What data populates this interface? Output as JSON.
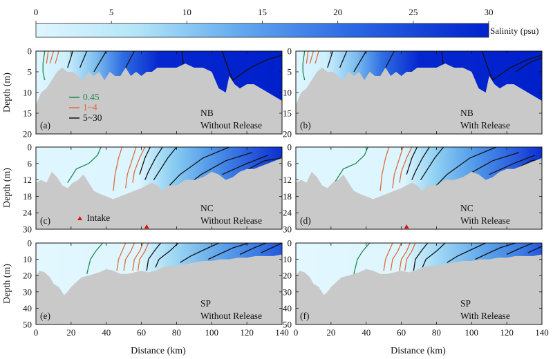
{
  "chart_data": {
    "type": "heatmap",
    "colorbar": {
      "label": "Salinity (psu)",
      "ticks": [
        0,
        5,
        10,
        15,
        20,
        25,
        30
      ],
      "range": [
        0,
        30
      ],
      "color_low": "#dff6ff",
      "color_high": "#0022cc"
    },
    "xlabel": "Distance (km)",
    "ylabel": "Depth (m)",
    "xlim": [
      0,
      140
    ],
    "xticks": [
      0,
      20,
      40,
      60,
      80,
      100,
      120,
      140
    ],
    "terrain_color": "#c9c9c9",
    "legend": {
      "entries": [
        {
          "label": "0.45",
          "color": "#1a8a50"
        },
        {
          "label": "1~4",
          "color": "#e06a3a"
        },
        {
          "label": "5~30",
          "color": "#111111"
        }
      ]
    },
    "intake": {
      "label": "Intake",
      "color": "#e01010",
      "x_km": 63
    },
    "rows": [
      {
        "name": "NB",
        "ylim": [
          20,
          0
        ],
        "yticks": [
          0,
          5,
          10,
          15,
          20
        ],
        "bottom": [
          [
            0,
            13
          ],
          [
            3,
            10
          ],
          [
            6,
            9
          ],
          [
            9,
            7
          ],
          [
            12,
            5
          ],
          [
            15,
            4
          ],
          [
            18,
            5
          ],
          [
            21,
            5
          ],
          [
            24,
            6
          ],
          [
            27,
            7
          ],
          [
            30,
            5
          ],
          [
            33,
            6
          ],
          [
            36,
            5
          ],
          [
            39,
            7
          ],
          [
            42,
            5
          ],
          [
            45,
            6
          ],
          [
            48,
            6
          ],
          [
            51,
            4
          ],
          [
            54,
            6
          ],
          [
            57,
            5
          ],
          [
            60,
            6
          ],
          [
            63,
            5
          ],
          [
            66,
            5
          ],
          [
            69,
            4
          ],
          [
            72,
            4
          ],
          [
            75,
            4
          ],
          [
            80,
            4
          ],
          [
            85,
            3
          ],
          [
            90,
            4
          ],
          [
            95,
            4
          ],
          [
            100,
            5
          ],
          [
            104,
            9
          ],
          [
            108,
            10
          ],
          [
            110,
            6
          ],
          [
            113,
            8
          ],
          [
            116,
            9
          ],
          [
            120,
            8
          ],
          [
            124,
            8
          ],
          [
            128,
            9
          ],
          [
            132,
            10
          ],
          [
            136,
            11
          ],
          [
            140,
            12
          ]
        ],
        "contours": {
          "green": [
            [
              [
                5,
                0
              ],
              [
                4,
                3
              ],
              [
                4,
                5
              ],
              [
                5,
                7
              ]
            ]
          ],
          "orange": [
            [
              [
                7,
                0
              ],
              [
                6,
                3
              ]
            ],
            [
              [
                10,
                0
              ],
              [
                8,
                3
              ]
            ],
            [
              [
                13,
                0
              ],
              [
                11,
                3
              ]
            ]
          ],
          "black": [
            [
              [
                21,
                0
              ],
              [
                18,
                4
              ]
            ],
            [
              [
                29,
                0
              ],
              [
                25,
                4
              ]
            ],
            [
              [
                40,
                0
              ],
              [
                33,
                5
              ]
            ],
            [
              [
                56,
                0
              ],
              [
                51,
                4
              ]
            ],
            [
              [
                83,
                0
              ],
              [
                84,
                4
              ]
            ],
            [
              [
                106,
                0
              ],
              [
                110,
                5
              ],
              [
                112,
                7
              ]
            ],
            [
              [
                140,
                1
              ],
              [
                132,
                2
              ],
              [
                122,
                4
              ],
              [
                112,
                7
              ]
            ]
          ]
        },
        "panels": [
          {
            "letter": "(a)",
            "site": "NB",
            "scenario": "Without Release",
            "shift": 0,
            "extra_black": []
          },
          {
            "letter": "(b)",
            "site": "NB",
            "scenario": "With Release",
            "shift": 0,
            "extra_black": [
              [
                [
                  140,
                  1.6
                ],
                [
                  133,
                  2.8
                ],
                [
                  125,
                  5
                ]
              ]
            ]
          }
        ]
      },
      {
        "name": "NC",
        "ylim": [
          30,
          0
        ],
        "yticks": [
          0,
          6,
          12,
          18,
          24,
          30
        ],
        "bottom": [
          [
            0,
            13
          ],
          [
            3,
            12
          ],
          [
            6,
            13
          ],
          [
            9,
            9
          ],
          [
            12,
            11
          ],
          [
            15,
            14
          ],
          [
            18,
            15
          ],
          [
            21,
            13
          ],
          [
            24,
            12
          ],
          [
            27,
            10
          ],
          [
            30,
            13
          ],
          [
            33,
            16
          ],
          [
            36,
            17
          ],
          [
            40,
            18
          ],
          [
            44,
            19
          ],
          [
            48,
            18
          ],
          [
            52,
            17
          ],
          [
            56,
            16
          ],
          [
            60,
            15
          ],
          [
            63,
            14
          ],
          [
            66,
            13
          ],
          [
            69,
            14
          ],
          [
            72,
            16
          ],
          [
            75,
            14
          ],
          [
            80,
            14
          ],
          [
            85,
            12
          ],
          [
            90,
            12
          ],
          [
            95,
            11
          ],
          [
            100,
            9
          ],
          [
            104,
            10
          ],
          [
            108,
            12
          ],
          [
            112,
            11
          ],
          [
            116,
            9
          ],
          [
            120,
            8
          ],
          [
            124,
            8
          ],
          [
            128,
            7
          ],
          [
            132,
            6
          ],
          [
            136,
            5
          ],
          [
            140,
            4
          ]
        ],
        "contours": {
          "green": [
            [
              [
                37,
                0
              ],
              [
                35,
                3
              ],
              [
                30,
                6
              ],
              [
                23,
                8
              ],
              [
                19,
                12
              ],
              [
                18,
                13
              ]
            ]
          ],
          "orange": [
            [
              [
                49,
                0
              ],
              [
                47,
                4
              ],
              [
                45,
                10
              ],
              [
                44,
                16
              ]
            ],
            [
              [
                57,
                0
              ],
              [
                55,
                4
              ],
              [
                52,
                10
              ],
              [
                51,
                15
              ]
            ],
            [
              [
                62,
                0
              ],
              [
                59,
                4
              ],
              [
                56,
                9
              ],
              [
                55,
                13
              ]
            ]
          ],
          "black": [
            [
              [
                65,
                0
              ],
              [
                62,
                4
              ],
              [
                59,
                10
              ]
            ],
            [
              [
                72,
                0
              ],
              [
                68,
                4
              ],
              [
                64,
                9
              ],
              [
                62,
                12
              ]
            ],
            [
              [
                80,
                0
              ],
              [
                75,
                4
              ],
              [
                69,
                10
              ],
              [
                67,
                12
              ]
            ],
            [
              [
                110,
                0
              ],
              [
                95,
                4
              ],
              [
                82,
                10
              ],
              [
                76,
                14
              ]
            ],
            [
              [
                123,
                2
              ],
              [
                108,
                5
              ],
              [
                94,
                10
              ],
              [
                86,
                14
              ]
            ],
            [
              [
                132,
                3
              ],
              [
                120,
                6
              ],
              [
                106,
                10
              ]
            ],
            [
              [
                140,
                4
              ],
              [
                130,
                5
              ],
              [
                118,
                9
              ]
            ]
          ]
        },
        "panels": [
          {
            "letter": "(c)",
            "site": "NC",
            "scenario": "Without Release",
            "shift": 0,
            "extra_black": [],
            "show_intake_label": true
          },
          {
            "letter": "(d)",
            "site": "NC",
            "scenario": "With Release",
            "shift": 4,
            "extra_black": [],
            "show_intake_label": false
          }
        ]
      },
      {
        "name": "SP",
        "ylim": [
          50,
          0
        ],
        "yticks": [
          0,
          10,
          20,
          30,
          40,
          50
        ],
        "bottom": [
          [
            0,
            20
          ],
          [
            2,
            17
          ],
          [
            5,
            18
          ],
          [
            8,
            21
          ],
          [
            10,
            25
          ],
          [
            13,
            27
          ],
          [
            16,
            32
          ],
          [
            18,
            30
          ],
          [
            20,
            27
          ],
          [
            23,
            24
          ],
          [
            26,
            21
          ],
          [
            30,
            20
          ],
          [
            33,
            19
          ],
          [
            36,
            18
          ],
          [
            40,
            16
          ],
          [
            44,
            17
          ],
          [
            48,
            19
          ],
          [
            52,
            19
          ],
          [
            56,
            18
          ],
          [
            60,
            17
          ],
          [
            64,
            18
          ],
          [
            68,
            17
          ],
          [
            72,
            15
          ],
          [
            76,
            14
          ],
          [
            80,
            14
          ],
          [
            85,
            13
          ],
          [
            90,
            12
          ],
          [
            95,
            11
          ],
          [
            100,
            11
          ],
          [
            105,
            10
          ],
          [
            110,
            10
          ],
          [
            115,
            9
          ],
          [
            120,
            9
          ],
          [
            125,
            8
          ],
          [
            130,
            8
          ],
          [
            135,
            8
          ],
          [
            140,
            7
          ]
        ],
        "contours": {
          "green": [
            [
              [
                38,
                0
              ],
              [
                34,
                5
              ],
              [
                31,
                10
              ],
              [
                29,
                19
              ]
            ]
          ],
          "orange": [
            [
              [
                51,
                0
              ],
              [
                49,
                5
              ],
              [
                47,
                10
              ],
              [
                46,
                17
              ]
            ],
            [
              [
                56,
                0
              ],
              [
                54,
                5
              ],
              [
                51,
                10
              ],
              [
                50,
                17
              ]
            ],
            [
              [
                61,
                0
              ],
              [
                59,
                5
              ],
              [
                56,
                10
              ],
              [
                55,
                17
              ]
            ],
            [
              [
                64,
                0
              ],
              [
                62,
                5
              ],
              [
                59,
                10
              ],
              [
                58,
                17
              ]
            ]
          ],
          "black": [
            [
              [
                71,
                0
              ],
              [
                68,
                4
              ],
              [
                64,
                10
              ],
              [
                63,
                17
              ]
            ],
            [
              [
                81,
                0
              ],
              [
                76,
                5
              ],
              [
                70,
                10
              ],
              [
                68,
                15
              ]
            ],
            [
              [
                104,
                0
              ],
              [
                96,
                4
              ],
              [
                88,
                8
              ],
              [
                82,
                12
              ]
            ],
            [
              [
                121,
                0
              ],
              [
                112,
                3
              ],
              [
                104,
                7
              ],
              [
                98,
                10
              ]
            ],
            [
              [
                131,
                0
              ],
              [
                124,
                3
              ],
              [
                116,
                7
              ]
            ],
            [
              [
                140,
                0
              ],
              [
                134,
                3
              ],
              [
                128,
                6
              ]
            ]
          ]
        },
        "panels": [
          {
            "letter": "(e)",
            "site": "SP",
            "scenario": "Without Release",
            "shift": 0,
            "extra_black": []
          },
          {
            "letter": "(f)",
            "site": "SP",
            "scenario": "With Release",
            "shift": 4,
            "extra_black": []
          }
        ]
      }
    ]
  }
}
